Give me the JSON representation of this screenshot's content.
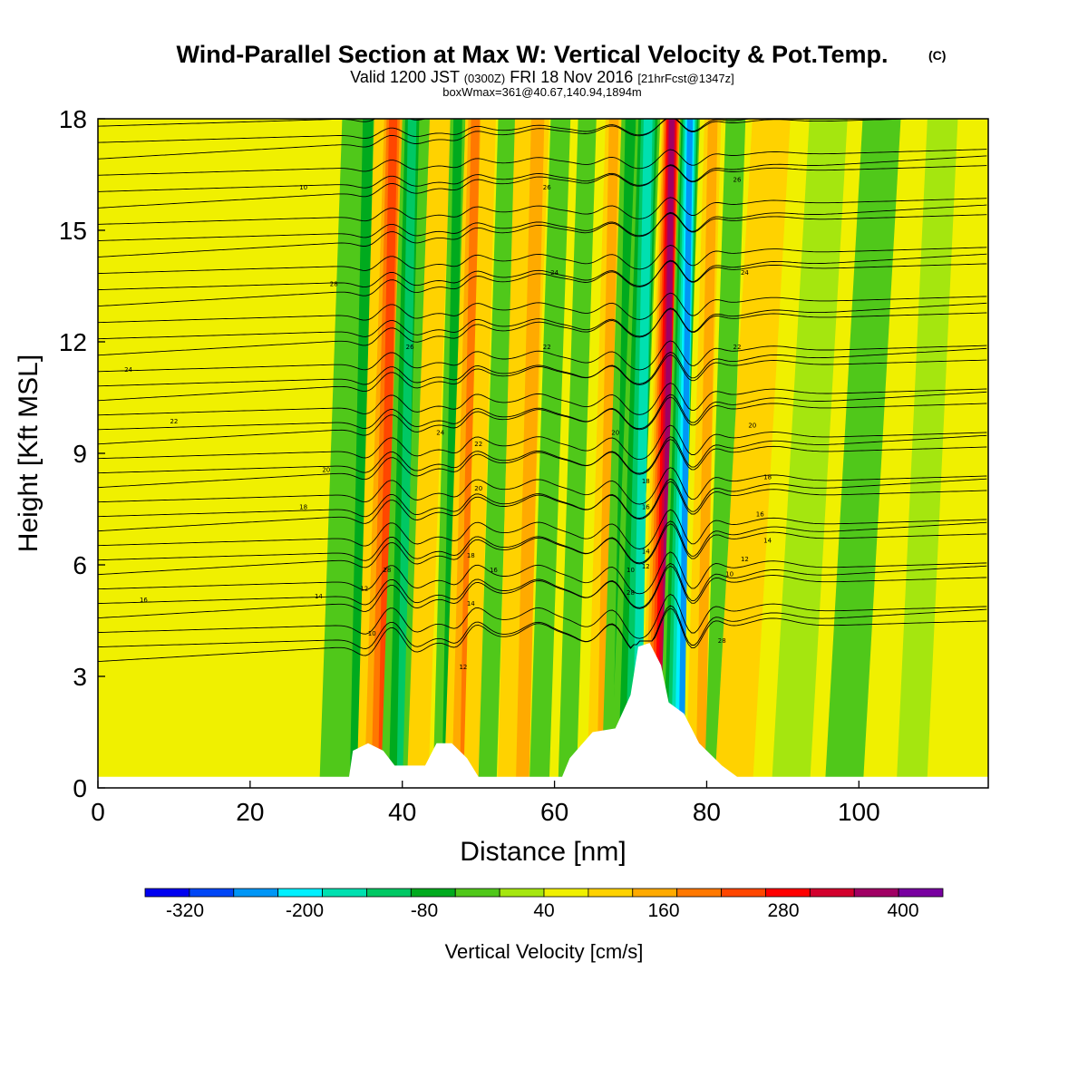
{
  "header": {
    "title": "Wind-Parallel Section at Max W: Vertical Velocity & Pot.Temp.",
    "copyright": "(C)",
    "valid_prefix": "Valid 1200 JST",
    "valid_utc": "(0300Z)",
    "valid_date": "FRI 18 Nov 2016",
    "forecast": "[21hrFcst@1347z]",
    "boxinfo": "boxWmax=361@40.67,140.94,1894m"
  },
  "chart_data": {
    "type": "heatmap",
    "title": "Wind-Parallel Section at Max W: Vertical Velocity & Pot.Temp.",
    "xlabel": "Distance [nm]",
    "ylabel": "Height [Kft MSL]",
    "xlim": [
      0,
      117
    ],
    "ylim": [
      0,
      18
    ],
    "xticks": [
      0,
      20,
      40,
      60,
      80,
      100
    ],
    "yticks": [
      0,
      3,
      6,
      9,
      12,
      15,
      18
    ],
    "colorbar": {
      "label": "Vertical Velocity [cm/s]",
      "min": -360,
      "max": 440,
      "step": 40,
      "tick_values": [
        -320,
        -200,
        -80,
        40,
        160,
        280,
        400
      ],
      "tick_labels": [
        "-320",
        "-200",
        "-80",
        "40",
        "160",
        "280",
        "400"
      ],
      "colors": [
        "#0000f0",
        "#0046f6",
        "#0096f6",
        "#00f0ff",
        "#00e0b0",
        "#00c864",
        "#00aa1e",
        "#50c81a",
        "#a5e60f",
        "#f0f000",
        "#ffd200",
        "#ffaa00",
        "#ff7800",
        "#ff4600",
        "#ff0000",
        "#d2002d",
        "#a00064",
        "#7800a0"
      ]
    },
    "vertical_velocity_bands": [
      {
        "x": 33.5,
        "w": 1.4,
        "value": -60
      },
      {
        "x": 35.5,
        "w": 1.2,
        "value": -120
      },
      {
        "x": 37.3,
        "w": 1.0,
        "value": 60
      },
      {
        "x": 38.8,
        "w": 1.5,
        "value": 200
      },
      {
        "x": 41.3,
        "w": 1.3,
        "value": -140
      },
      {
        "x": 43.3,
        "w": 1.0,
        "value": -50
      },
      {
        "x": 45.0,
        "w": 1.4,
        "value": 80
      },
      {
        "x": 47.3,
        "w": 1.0,
        "value": -100
      },
      {
        "x": 49.6,
        "w": 1.3,
        "value": 150
      },
      {
        "x": 51.3,
        "w": 1.0,
        "value": 70
      },
      {
        "x": 53.8,
        "w": 1.2,
        "value": -80
      },
      {
        "x": 55.8,
        "w": 1.0,
        "value": 60
      },
      {
        "x": 57.8,
        "w": 1.5,
        "value": 120
      },
      {
        "x": 60.8,
        "w": 1.3,
        "value": -50
      },
      {
        "x": 64.3,
        "w": 1.2,
        "value": -90
      },
      {
        "x": 67.8,
        "w": 1.1,
        "value": 110
      },
      {
        "x": 70.0,
        "w": 1.2,
        "value": -110
      },
      {
        "x": 72.3,
        "w": 1.6,
        "value": -190
      },
      {
        "x": 75.4,
        "w": 1.3,
        "value": 330
      },
      {
        "x": 77.8,
        "w": 1.3,
        "value": -260
      },
      {
        "x": 80.8,
        "w": 1.1,
        "value": 100
      },
      {
        "x": 83.8,
        "w": 1.3,
        "value": -60
      },
      {
        "x": 88.5,
        "w": 2.5,
        "value": 90
      },
      {
        "x": 96.0,
        "w": 2.5,
        "value": -40
      },
      {
        "x": 103.0,
        "w": 2.5,
        "value": -60
      },
      {
        "x": 111.0,
        "w": 2.0,
        "value": -40
      }
    ],
    "potential_temperature": {
      "contour_count": 38,
      "labels": [
        "24",
        "22",
        "20",
        "18",
        "16",
        "14",
        "12",
        "10",
        "28",
        "26"
      ]
    },
    "terrain": [
      [
        0,
        0.3
      ],
      [
        33,
        0.3
      ],
      [
        33.5,
        1.0
      ],
      [
        35.5,
        1.2
      ],
      [
        37.5,
        1.0
      ],
      [
        39,
        0.6
      ],
      [
        43,
        0.6
      ],
      [
        44.5,
        1.2
      ],
      [
        46.5,
        1.2
      ],
      [
        48.5,
        0.8
      ],
      [
        50,
        0.3
      ],
      [
        61,
        0.3
      ],
      [
        62,
        0.8
      ],
      [
        65,
        1.5
      ],
      [
        68,
        1.6
      ],
      [
        70,
        2.5
      ],
      [
        71,
        3.8
      ],
      [
        72.5,
        3.9
      ],
      [
        74,
        3.3
      ],
      [
        75,
        2.3
      ],
      [
        77,
        2.0
      ],
      [
        79,
        1.2
      ],
      [
        82,
        0.6
      ],
      [
        84,
        0.3
      ],
      [
        117,
        0.3
      ]
    ]
  }
}
